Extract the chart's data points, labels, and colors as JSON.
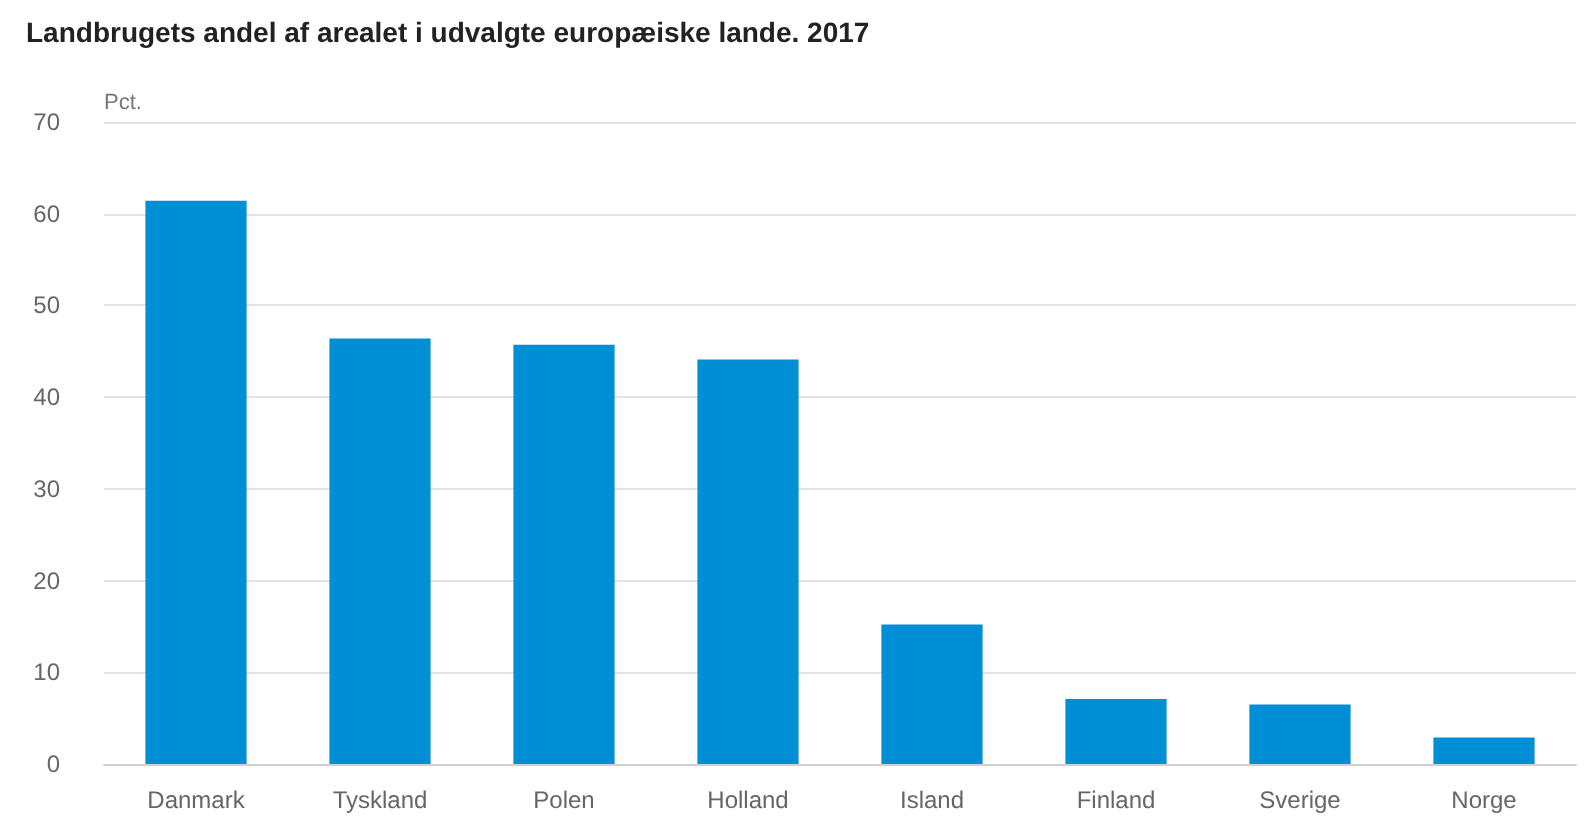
{
  "chart_data": {
    "type": "bar",
    "title": "Landbrugets andel af arealet i udvalgte europæiske lande. 2017",
    "ylabel": "Pct.",
    "categories": [
      "Danmark",
      "Tyskland",
      "Polen",
      "Holland",
      "Island",
      "Finland",
      "Sverige",
      "Norge"
    ],
    "values": [
      61.4,
      46.4,
      45.7,
      44.1,
      15.2,
      7.1,
      6.5,
      2.9
    ],
    "color": "#008fd5",
    "ylim": [
      0,
      70
    ],
    "yticks": [
      0,
      10,
      20,
      30,
      40,
      50,
      60,
      70
    ],
    "grid": "y"
  }
}
